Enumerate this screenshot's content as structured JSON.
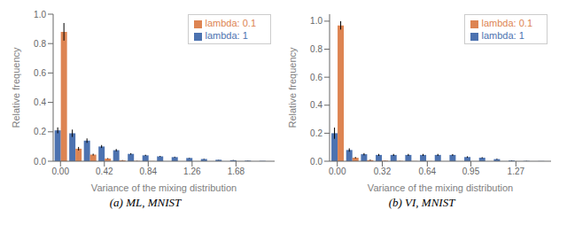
{
  "chart_data": [
    {
      "type": "bar",
      "title": "(a) ML, MNIST",
      "xlabel": "Variance of the mixing distribution",
      "ylabel": "Relative frequency",
      "x": [
        0.0,
        0.14,
        0.28,
        0.42,
        0.56,
        0.7,
        0.84,
        0.98,
        1.12,
        1.26,
        1.4,
        1.54,
        1.68,
        1.82,
        1.96
      ],
      "series": [
        {
          "name": "lambda: 1",
          "color": "#4c72b0",
          "values": [
            0.21,
            0.19,
            0.14,
            0.1,
            0.075,
            0.05,
            0.04,
            0.033,
            0.028,
            0.022,
            0.015,
            0.01,
            0.007,
            0.004,
            0.002
          ],
          "errors": [
            0.02,
            0.025,
            0.015,
            0.01,
            0.008,
            0.005,
            0.004,
            0.003,
            0.003,
            0.002,
            0.002,
            0.001,
            0.001,
            0.001,
            0.0
          ]
        },
        {
          "name": "lambda: 0.1",
          "color": "#dd8452",
          "values": [
            0.88,
            0.085,
            0.045,
            0.018,
            0.006,
            0.002,
            0.001,
            0.0,
            0.0,
            0.0,
            0.0,
            0.0,
            0.0,
            0.0,
            0.0
          ],
          "errors": [
            0.06,
            0.012,
            0.006,
            0.003,
            0.002,
            0.001,
            0.0,
            0.0,
            0.0,
            0.0,
            0.0,
            0.0,
            0.0,
            0.0,
            0.0
          ]
        }
      ],
      "xlim": [
        -0.07,
        2.05
      ],
      "ylim": [
        0,
        1.0
      ],
      "xticks": [
        {
          "value": 0.0,
          "label": "0.00"
        },
        0.42,
        0.84,
        1.26,
        1.68
      ],
      "yticks": [
        {
          "value": 0.0,
          "label": "0.0"
        },
        0.2,
        0.4,
        0.6,
        0.8,
        {
          "value": 1.0,
          "label": "1.0"
        }
      ],
      "legend": "upper right"
    },
    {
      "type": "bar",
      "title": "(b) VI, MNIST",
      "xlabel": "Variance of the mixing distribution",
      "ylabel": "Relative frequency",
      "x": [
        0.0,
        0.105,
        0.21,
        0.315,
        0.42,
        0.525,
        0.63,
        0.735,
        0.84,
        0.945,
        1.05,
        1.155,
        1.26,
        1.365,
        1.47
      ],
      "series": [
        {
          "name": "lambda: 1",
          "color": "#4c72b0",
          "values": [
            0.2,
            0.08,
            0.05,
            0.045,
            0.045,
            0.045,
            0.045,
            0.045,
            0.045,
            0.03,
            0.025,
            0.015,
            0.005,
            0.002,
            0.001
          ],
          "errors": [
            0.04,
            0.012,
            0.008,
            0.007,
            0.007,
            0.007,
            0.007,
            0.007,
            0.006,
            0.005,
            0.004,
            0.003,
            0.002,
            0.001,
            0.0
          ]
        },
        {
          "name": "lambda: 0.1",
          "color": "#dd8452",
          "values": [
            0.97,
            0.025,
            0.008,
            0.004,
            0.002,
            0.001,
            0.001,
            0.0,
            0.0,
            0.0,
            0.0,
            0.0,
            0.0,
            0.0,
            0.0
          ],
          "errors": [
            0.03,
            0.005,
            0.003,
            0.001,
            0.001,
            0.0,
            0.0,
            0.0,
            0.0,
            0.0,
            0.0,
            0.0,
            0.0,
            0.0,
            0.0
          ]
        }
      ],
      "xlim": [
        -0.055,
        1.52
      ],
      "ylim": [
        0,
        1.05
      ],
      "xticks": [
        {
          "value": 0.0,
          "label": "0.00"
        },
        0.32,
        0.64,
        0.95,
        1.27
      ],
      "yticks": [
        {
          "value": 0.0,
          "label": "0.0"
        },
        0.2,
        0.4,
        0.6,
        0.8,
        {
          "value": 1.0,
          "label": "1.0"
        }
      ],
      "legend": "upper right"
    }
  ]
}
